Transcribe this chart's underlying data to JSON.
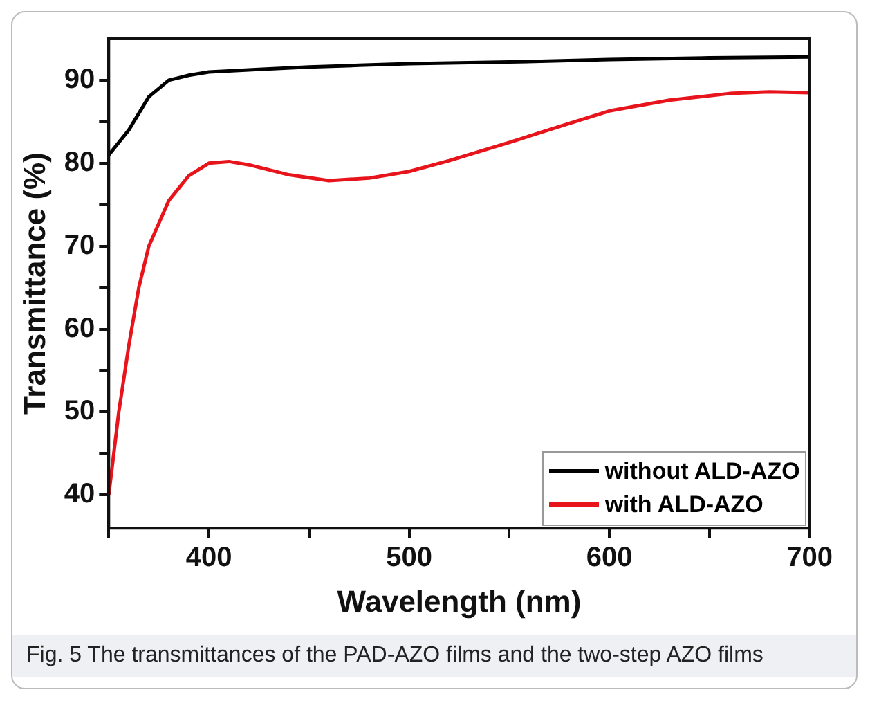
{
  "chart_data": {
    "type": "line",
    "xlabel": "Wavelength (nm)",
    "ylabel": "Transmittance (%)",
    "xlim": [
      350,
      700
    ],
    "xticks": [
      {
        "value": 350,
        "label": null
      },
      400,
      {
        "value": 450,
        "label": null
      },
      500,
      {
        "value": 550,
        "label": null
      },
      600,
      {
        "value": 650,
        "label": null
      },
      700
    ],
    "ylim": [
      36,
      95
    ],
    "yticks": [
      40,
      {
        "value": 45,
        "label": null
      },
      50,
      {
        "value": 55,
        "label": null
      },
      60,
      {
        "value": 65,
        "label": null
      },
      70,
      {
        "value": 75,
        "label": null
      },
      80,
      {
        "value": 85,
        "label": null
      },
      90
    ],
    "grid": false,
    "legend": "bottom right",
    "marker": "none",
    "line_style": "solid",
    "series": [
      {
        "name": "without ALD-AZO",
        "color": "#000000",
        "x": [
          350,
          360,
          370,
          380,
          390,
          400,
          425,
          450,
          475,
          500,
          550,
          600,
          650,
          700
        ],
        "values": [
          81,
          84,
          88,
          90,
          90.6,
          91,
          91.3,
          91.6,
          91.8,
          92,
          92.2,
          92.5,
          92.7,
          92.8
        ]
      },
      {
        "name": "with ALD-AZO",
        "color": "#e8141c",
        "x": [
          350,
          355,
          360,
          365,
          370,
          380,
          390,
          400,
          410,
          420,
          440,
          460,
          480,
          500,
          520,
          550,
          580,
          600,
          630,
          660,
          680,
          700
        ],
        "values": [
          40,
          50,
          58,
          65,
          70,
          75.5,
          78.5,
          80,
          80.2,
          79.8,
          78.6,
          77.9,
          78.2,
          79,
          80.3,
          82.5,
          84.8,
          86.3,
          87.6,
          88.4,
          88.6,
          88.5
        ]
      }
    ],
    "annotations": [
      "Fig. 5 The transmittances of the PAD-AZO films and the two-step AZO films"
    ]
  }
}
